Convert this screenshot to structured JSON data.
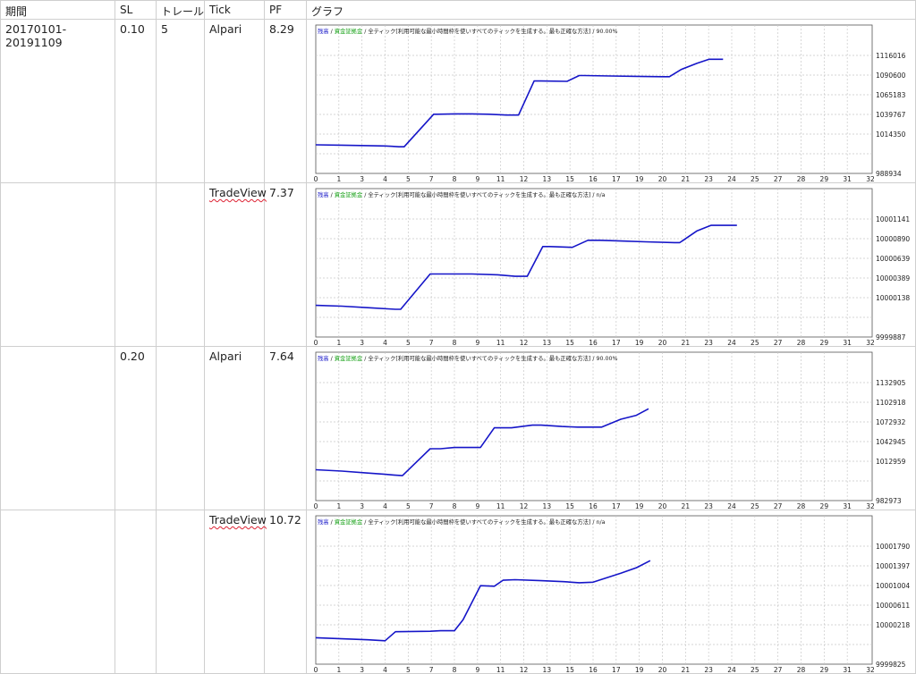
{
  "headers": {
    "period": "期間",
    "sl": "SL",
    "trail": "トレール",
    "tick": "Tick",
    "pf": "PF",
    "graph": "グラフ"
  },
  "rows": [
    {
      "period": "20170101-20191109",
      "sl": "0.10",
      "trail": "5",
      "tick": "Alpari",
      "pf": "8.29"
    },
    {
      "period": "",
      "sl": "",
      "trail": "",
      "tick": "TradeView",
      "pf": "7.37"
    },
    {
      "period": "",
      "sl": "0.20",
      "trail": "",
      "tick": "Alpari",
      "pf": "7.64"
    },
    {
      "period": "",
      "sl": "",
      "trail": "",
      "tick": "TradeView",
      "pf": "10.72"
    }
  ],
  "legend": {
    "balance": "残高",
    "sep1": " / ",
    "lot": "資金証拠金",
    "sep2": " / ",
    "desc": "全ティック[利用可能な最小時間枠を使いすべてのティックを生成する。最も正確な方法]"
  },
  "colors": {
    "line": "#1515c8",
    "grid": "#c8c8c8",
    "legend_balance": "#1515c8",
    "legend_lot": "#17a117",
    "border": "#cfcfcf"
  },
  "chart_data": [
    {
      "type": "line",
      "title": "",
      "quality": "90.00%",
      "x_ticks": [
        "0",
        "1",
        "3",
        "4",
        "5",
        "7",
        "8",
        "9",
        "11",
        "12",
        "13",
        "15",
        "16",
        "17",
        "19",
        "20",
        "21",
        "23",
        "24",
        "25",
        "27",
        "28",
        "29",
        "31",
        "32"
      ],
      "y_ticks": [
        "1116016",
        "1090600",
        "1065183",
        "1039767",
        "1014350",
        "988934"
      ],
      "ylim": [
        988934,
        1116016
      ],
      "xlim": [
        0,
        32
      ],
      "grid": true,
      "series": [
        {
          "x": [
            0,
            1.5,
            3,
            4,
            4.4,
            4.8,
            5.1,
            6.8,
            7,
            8,
            9,
            10,
            11,
            11.7,
            12.6,
            13,
            14.5,
            15.2,
            15.5,
            17,
            18.5,
            20,
            20.4,
            21.1,
            22,
            22.7,
            23.5
          ],
          "y": [
            1000500,
            1000000,
            999500,
            999000,
            998500,
            998000,
            998000,
            1040000,
            1040000,
            1040500,
            1040500,
            1040000,
            1039000,
            1039000,
            1083000,
            1083000,
            1082500,
            1090000,
            1090000,
            1089500,
            1089000,
            1088500,
            1088500,
            1098000,
            1106000,
            1111000,
            1111000
          ]
        }
      ]
    },
    {
      "type": "line",
      "title": "",
      "quality": "n/a",
      "x_ticks": [
        "0",
        "1",
        "3",
        "4",
        "5",
        "7",
        "8",
        "9",
        "11",
        "12",
        "13",
        "15",
        "16",
        "17",
        "19",
        "20",
        "21",
        "23",
        "24",
        "25",
        "27",
        "28",
        "29",
        "31",
        "32"
      ],
      "y_ticks": [
        "10001141",
        "10000890",
        "10000639",
        "10000389",
        "10000138",
        "9999887"
      ],
      "ylim": [
        9999887,
        10001141
      ],
      "xlim": [
        0,
        32
      ],
      "grid": true,
      "series": [
        {
          "x": [
            0,
            1.5,
            3,
            4.6,
            4.9,
            6.6,
            7,
            9,
            10.5,
            11.5,
            12.2,
            13.1,
            13.5,
            14.8,
            15.7,
            16.4,
            17.6,
            19,
            20.7,
            21,
            22,
            22.8,
            24.3
          ],
          "y": [
            10000040,
            10000030,
            10000010,
            9999990,
            9999990,
            10000440,
            10000440,
            10000440,
            10000430,
            10000410,
            10000410,
            10000790,
            10000790,
            10000780,
            10000870,
            10000870,
            10000860,
            10000850,
            10000840,
            10000840,
            10000990,
            10001060,
            10001060
          ]
        }
      ]
    },
    {
      "type": "line",
      "title": "",
      "quality": "90.00%",
      "x_ticks": [
        "0",
        "1",
        "3",
        "4",
        "5",
        "7",
        "8",
        "9",
        "11",
        "12",
        "13",
        "15",
        "16",
        "17",
        "19",
        "20",
        "21",
        "23",
        "24",
        "25",
        "27",
        "28",
        "29",
        "31",
        "32"
      ],
      "y_ticks": [
        "1132905",
        "1102918",
        "1072932",
        "1042945",
        "1012959",
        "982973"
      ],
      "ylim": [
        982973,
        1132905
      ],
      "xlim": [
        0,
        32
      ],
      "grid": true,
      "series": [
        {
          "x": [
            0,
            1.5,
            3,
            4,
            4.5,
            5,
            6.6,
            7.2,
            8,
            8.5,
            9.5,
            10.3,
            10.8,
            11.3,
            12.5,
            13,
            14.2,
            15.1,
            16,
            16.5,
            17.6,
            18.5,
            19.2
          ],
          "y": [
            1000000,
            998000,
            995000,
            993000,
            992000,
            991000,
            1032000,
            1032000,
            1034000,
            1034000,
            1034000,
            1064000,
            1064000,
            1064000,
            1068000,
            1068000,
            1066000,
            1065000,
            1065000,
            1065000,
            1077000,
            1083000,
            1093000
          ]
        }
      ]
    },
    {
      "type": "line",
      "title": "",
      "quality": "n/a",
      "x_ticks": [
        "0",
        "1",
        "3",
        "4",
        "5",
        "7",
        "8",
        "9",
        "11",
        "12",
        "13",
        "15",
        "16",
        "17",
        "19",
        "20",
        "21",
        "23",
        "24",
        "25",
        "27",
        "28",
        "29",
        "31",
        "32"
      ],
      "y_ticks": [
        "10001790",
        "10001397",
        "10001004",
        "10000611",
        "10000218",
        "9999825"
      ],
      "ylim": [
        9999825,
        10001790
      ],
      "xlim": [
        0,
        32
      ],
      "grid": true,
      "series": [
        {
          "x": [
            0,
            1.5,
            3,
            4,
            4.6,
            6.6,
            7.2,
            8,
            8.5,
            9.5,
            10.3,
            10.8,
            11.5,
            13,
            14.3,
            15.2,
            16,
            17.6,
            18.5,
            19.3
          ],
          "y": [
            9999960,
            9999940,
            9999920,
            9999900,
            10000080,
            10000090,
            10000100,
            10000100,
            10000320,
            10001000,
            10000990,
            10001110,
            10001120,
            10001100,
            10001080,
            10001060,
            10001070,
            10001250,
            10001360,
            10001500
          ]
        }
      ]
    }
  ]
}
